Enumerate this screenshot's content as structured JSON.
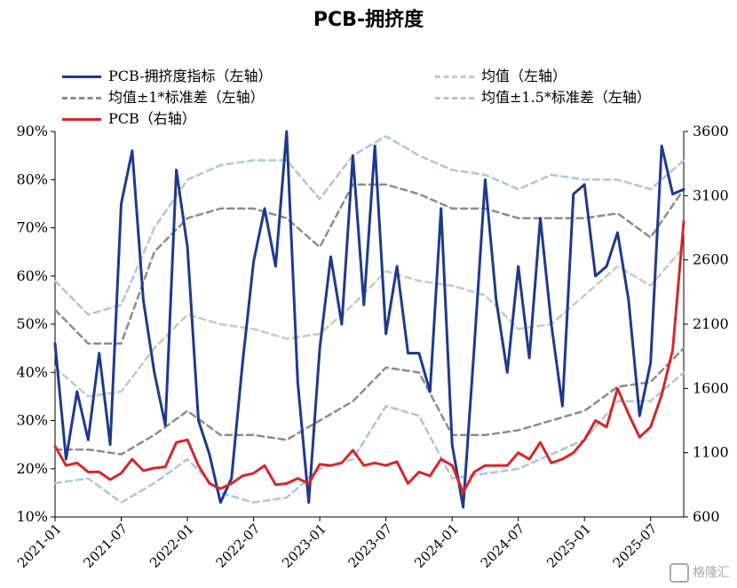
{
  "chart_data": {
    "type": "line",
    "title": "PCB-拥挤度",
    "x_start": "2021-01",
    "x_end": "2025-10",
    "xticks": [
      "2021-01",
      "2021-07",
      "2022-01",
      "2022-07",
      "2023-01",
      "2023-07",
      "2024-01",
      "2024-07",
      "2025-01",
      "2025-07"
    ],
    "left_axis": {
      "ylim": [
        10,
        90
      ],
      "ticks": [
        "10%",
        "20%",
        "30%",
        "40%",
        "50%",
        "60%",
        "70%",
        "80%",
        "90%"
      ]
    },
    "right_axis": {
      "ylim": [
        600,
        3600
      ],
      "ticks": [
        "600",
        "1100",
        "1600",
        "2100",
        "2600",
        "3100",
        "3600"
      ]
    },
    "legend_position": "top",
    "series": [
      {
        "name": "PCB-拥挤度指标（左轴）",
        "axis": "left",
        "color": "#1f3a8a",
        "style": "solid",
        "x": [
          "2021-01",
          "2021-02",
          "2021-03",
          "2021-04",
          "2021-05",
          "2021-06",
          "2021-07",
          "2021-08",
          "2021-09",
          "2021-10",
          "2021-11",
          "2021-12",
          "2022-01",
          "2022-02",
          "2022-03",
          "2022-04",
          "2022-05",
          "2022-06",
          "2022-07",
          "2022-08",
          "2022-09",
          "2022-10",
          "2022-11",
          "2022-12",
          "2023-01",
          "2023-02",
          "2023-03",
          "2023-04",
          "2023-05",
          "2023-06",
          "2023-07",
          "2023-08",
          "2023-09",
          "2023-10",
          "2023-11",
          "2023-12",
          "2024-01",
          "2024-02",
          "2024-03",
          "2024-04",
          "2024-05",
          "2024-06",
          "2024-07",
          "2024-08",
          "2024-09",
          "2024-10",
          "2024-11",
          "2024-12",
          "2025-01",
          "2025-02",
          "2025-03",
          "2025-04",
          "2025-05",
          "2025-06",
          "2025-07",
          "2025-08",
          "2025-09",
          "2025-10"
        ],
        "y": [
          46,
          22,
          36,
          26,
          44,
          25,
          75,
          86,
          55,
          40,
          29,
          82,
          66,
          30,
          23,
          13,
          18,
          42,
          63,
          74,
          62,
          90,
          38,
          13,
          45,
          64,
          50,
          85,
          54,
          87,
          48,
          62,
          44,
          44,
          36,
          74,
          25,
          12,
          45,
          80,
          55,
          40,
          62,
          43,
          72,
          50,
          33,
          77,
          79,
          60,
          62,
          69,
          55,
          31,
          42,
          87,
          77,
          78
        ]
      },
      {
        "name": "均值（左轴）",
        "axis": "left",
        "color": "#c8c8c8",
        "style": "dashed",
        "x": [
          "2021-01",
          "2021-04",
          "2021-07",
          "2021-10",
          "2022-01",
          "2022-04",
          "2022-07",
          "2022-10",
          "2023-01",
          "2023-04",
          "2023-07",
          "2023-10",
          "2024-01",
          "2024-04",
          "2024-07",
          "2024-10",
          "2025-01",
          "2025-04",
          "2025-07",
          "2025-10"
        ],
        "y": [
          41,
          35,
          36,
          45,
          52,
          50,
          49,
          47,
          48,
          54,
          61,
          59,
          58,
          56,
          49,
          50,
          56,
          62,
          58,
          66
        ]
      },
      {
        "name": "均值±1*标准差（左轴）",
        "axis": "left",
        "color": "#8c8c8c",
        "style": "dashed",
        "x": [
          "2021-01",
          "2021-04",
          "2021-07",
          "2021-10",
          "2022-01",
          "2022-04",
          "2022-07",
          "2022-10",
          "2023-01",
          "2023-04",
          "2023-07",
          "2023-10",
          "2024-01",
          "2024-04",
          "2024-07",
          "2024-10",
          "2025-01",
          "2025-04",
          "2025-07",
          "2025-10"
        ],
        "y": [
          53,
          46,
          46,
          65,
          72,
          74,
          74,
          72,
          66,
          79,
          79,
          77,
          74,
          74,
          72,
          72,
          72,
          73,
          68,
          78
        ]
      },
      {
        "name": "均值±1*标准差（左轴）",
        "axis": "left",
        "color": "#8c8c8c",
        "style": "dashed",
        "legend": false,
        "x": [
          "2021-01",
          "2021-04",
          "2021-07",
          "2021-10",
          "2022-01",
          "2022-04",
          "2022-07",
          "2022-10",
          "2023-01",
          "2023-04",
          "2023-07",
          "2023-10",
          "2024-01",
          "2024-04",
          "2024-07",
          "2024-10",
          "2025-01",
          "2025-04",
          "2025-07",
          "2025-10"
        ],
        "y": [
          24,
          24,
          23,
          27,
          32,
          27,
          27,
          26,
          30,
          34,
          41,
          40,
          27,
          27,
          28,
          30,
          32,
          37,
          38,
          45
        ]
      },
      {
        "name": "均值±1.5*标准差（左轴）",
        "axis": "left",
        "color": "#b0c4e0",
        "style": "dashed",
        "x": [
          "2021-01",
          "2021-04",
          "2021-07",
          "2021-10",
          "2022-01",
          "2022-04",
          "2022-07",
          "2022-10",
          "2023-01",
          "2023-04",
          "2023-07",
          "2023-10",
          "2024-01",
          "2024-04",
          "2024-07",
          "2024-10",
          "2025-01",
          "2025-04",
          "2025-07",
          "2025-10"
        ],
        "y": [
          59,
          52,
          54,
          70,
          80,
          83,
          84,
          84,
          76,
          85,
          89,
          85,
          82,
          81,
          78,
          81,
          80,
          80,
          78,
          84
        ]
      },
      {
        "name": "均值±1.5*标准差（左轴）",
        "axis": "left",
        "color": "#b0c4e0",
        "style": "dashed",
        "legend": false,
        "x": [
          "2021-01",
          "2021-04",
          "2021-07",
          "2021-10",
          "2022-01",
          "2022-04",
          "2022-07",
          "2022-10",
          "2023-01",
          "2023-04",
          "2023-07",
          "2023-10",
          "2024-01",
          "2024-04",
          "2024-07",
          "2024-10",
          "2025-01",
          "2025-04",
          "2025-07",
          "2025-10"
        ],
        "y": [
          17,
          18,
          13,
          17,
          22,
          15,
          13,
          14,
          20,
          22,
          33,
          31,
          18,
          19,
          20,
          23,
          26,
          34,
          34,
          40
        ]
      },
      {
        "name": "PCB（右轴）",
        "axis": "right",
        "color": "#d62728",
        "style": "solid",
        "x": [
          "2021-01",
          "2021-02",
          "2021-03",
          "2021-04",
          "2021-05",
          "2021-06",
          "2021-07",
          "2021-08",
          "2021-09",
          "2021-10",
          "2021-11",
          "2021-12",
          "2022-01",
          "2022-02",
          "2022-03",
          "2022-04",
          "2022-05",
          "2022-06",
          "2022-07",
          "2022-08",
          "2022-09",
          "2022-10",
          "2022-11",
          "2022-12",
          "2023-01",
          "2023-02",
          "2023-03",
          "2023-04",
          "2023-05",
          "2023-06",
          "2023-07",
          "2023-08",
          "2023-09",
          "2023-10",
          "2023-11",
          "2023-12",
          "2024-01",
          "2024-02",
          "2024-03",
          "2024-04",
          "2024-05",
          "2024-06",
          "2024-07",
          "2024-08",
          "2024-09",
          "2024-10",
          "2024-11",
          "2024-12",
          "2025-01",
          "2025-02",
          "2025-03",
          "2025-04",
          "2025-05",
          "2025-06",
          "2025-07",
          "2025-08",
          "2025-09",
          "2025-10"
        ],
        "y": [
          1150,
          1000,
          1020,
          950,
          950,
          890,
          940,
          1050,
          960,
          980,
          990,
          1180,
          1200,
          1000,
          860,
          820,
          860,
          920,
          940,
          1000,
          850,
          860,
          900,
          860,
          1010,
          1000,
          1020,
          1120,
          1000,
          1020,
          1000,
          1030,
          860,
          950,
          920,
          1050,
          1000,
          790,
          950,
          1000,
          1000,
          1000,
          1100,
          1050,
          1180,
          1020,
          1050,
          1100,
          1200,
          1350,
          1300,
          1600,
          1400,
          1220,
          1300,
          1550,
          1900,
          2900
        ]
      }
    ]
  },
  "legend": {
    "item1": "PCB-拥挤度指标（左轴）",
    "item2": "均值（左轴）",
    "item3": "均值±1*标准差（左轴）",
    "item4": "均值±1.5*标准差（左轴）",
    "item5": "PCB（右轴）"
  },
  "watermark": "格隆汇"
}
